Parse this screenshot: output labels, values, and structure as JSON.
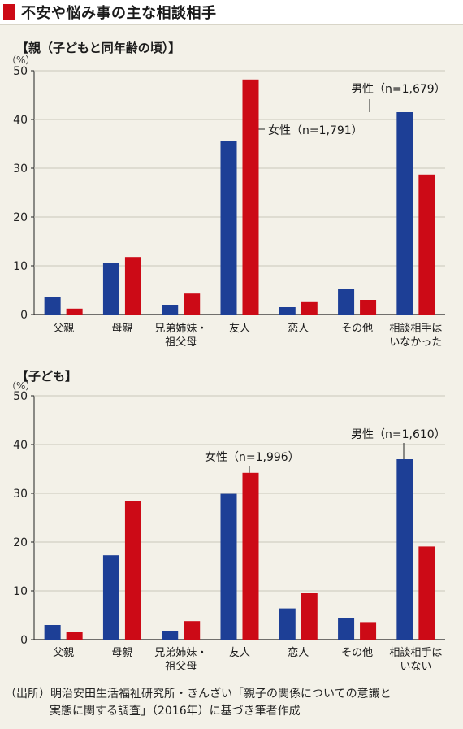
{
  "title": "不安や悩み事の主な相談相手",
  "colors": {
    "male": "#1d3f96",
    "female": "#cc0a16",
    "accent": "#cc0a16"
  },
  "chart_data": [
    {
      "type": "bar",
      "title": "【親（子どもと同年齢の頃）】",
      "unit": "（%）",
      "ylim": [
        0,
        50
      ],
      "yticks": [
        0,
        10,
        20,
        30,
        40,
        50
      ],
      "categories": [
        [
          "父親"
        ],
        [
          "母親"
        ],
        [
          "兄弟姉妹・",
          "祖父母"
        ],
        [
          "友人"
        ],
        [
          "恋人"
        ],
        [
          "その他"
        ],
        [
          "相談相手は",
          "いなかった"
        ]
      ],
      "series": [
        {
          "name": "男性（n=1,679）",
          "color": "#1d3f96",
          "values": [
            3.5,
            10.5,
            2.0,
            35.5,
            1.5,
            5.2,
            41.5
          ]
        },
        {
          "name": "女性（n=1,791）",
          "color": "#cc0a16",
          "values": [
            1.2,
            11.8,
            4.3,
            48.2,
            2.7,
            3.0,
            28.7
          ]
        }
      ]
    },
    {
      "type": "bar",
      "title": "【子ども】",
      "unit": "（%）",
      "ylim": [
        0,
        50
      ],
      "yticks": [
        0,
        10,
        20,
        30,
        40,
        50
      ],
      "categories": [
        [
          "父親"
        ],
        [
          "母親"
        ],
        [
          "兄弟姉妹・",
          "祖父母"
        ],
        [
          "友人"
        ],
        [
          "恋人"
        ],
        [
          "その他"
        ],
        [
          "相談相手は",
          "いない"
        ]
      ],
      "series": [
        {
          "name": "男性（n=1,610）",
          "color": "#1d3f96",
          "values": [
            3.0,
            17.3,
            1.8,
            29.9,
            6.4,
            4.5,
            37.0
          ]
        },
        {
          "name": "女性（n=1,996）",
          "color": "#cc0a16",
          "values": [
            1.5,
            28.5,
            3.8,
            34.2,
            9.5,
            3.6,
            19.1
          ]
        }
      ]
    }
  ],
  "source": {
    "line1": "（出所）明治安田生活福祉研究所・きんざい「親子の関係についての意識と",
    "line2": "実態に関する調査」（2016年）に基づき筆者作成"
  }
}
